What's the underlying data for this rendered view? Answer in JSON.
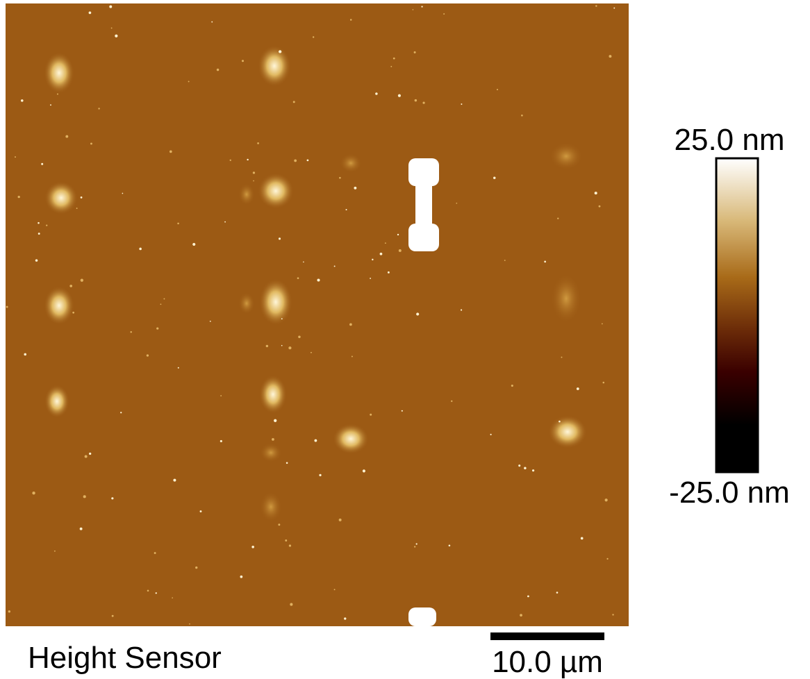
{
  "image": {
    "label": "Height Sensor"
  },
  "colorbar": {
    "max_label": "25.0 nm",
    "min_label": "-25.0 nm"
  },
  "scale_bar": {
    "label": "10.0 µm"
  }
}
